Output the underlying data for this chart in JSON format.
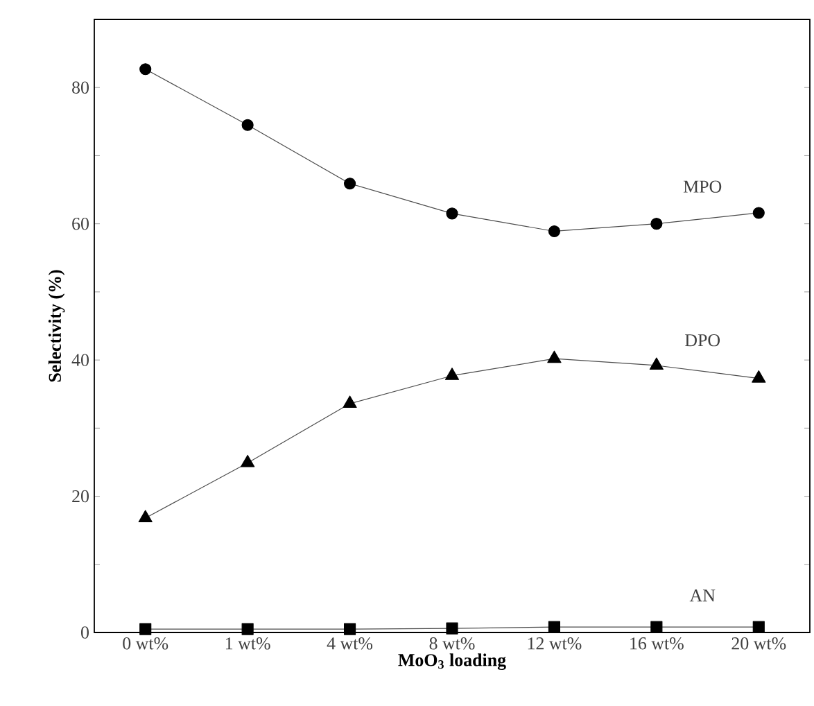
{
  "chart_data": {
    "type": "line",
    "xlabel": "MoO$_{3}$ loading",
    "ylabel": "Selectivity (%)",
    "categories": [
      "0 wt%",
      "1 wt%",
      "4 wt%",
      "8 wt%",
      "12 wt%",
      "16 wt%",
      "20 wt%"
    ],
    "ylim": [
      0,
      90
    ],
    "yticks": [
      0,
      {
        "value": 10,
        "label": null
      },
      20,
      {
        "value": 30,
        "label": null
      },
      40,
      {
        "value": 50,
        "label": null
      },
      60,
      {
        "value": 70,
        "label": null
      },
      80
    ],
    "series": [
      {
        "name": "MPO",
        "color": "#000000",
        "marker": "circle",
        "values": [
          82.7,
          74.5,
          65.9,
          61.5,
          58.9,
          60.0,
          61.6
        ]
      },
      {
        "name": "DPO",
        "color": "#000000",
        "marker": "triangle",
        "values": [
          16.8,
          24.9,
          33.6,
          37.7,
          40.2,
          39.2,
          37.3
        ]
      },
      {
        "name": "AN",
        "color": "#000000",
        "marker": "square",
        "values": [
          0.5,
          0.5,
          0.5,
          0.6,
          0.8,
          0.8,
          0.8
        ]
      }
    ],
    "grid": false,
    "legend": false,
    "line_style": "solid"
  }
}
